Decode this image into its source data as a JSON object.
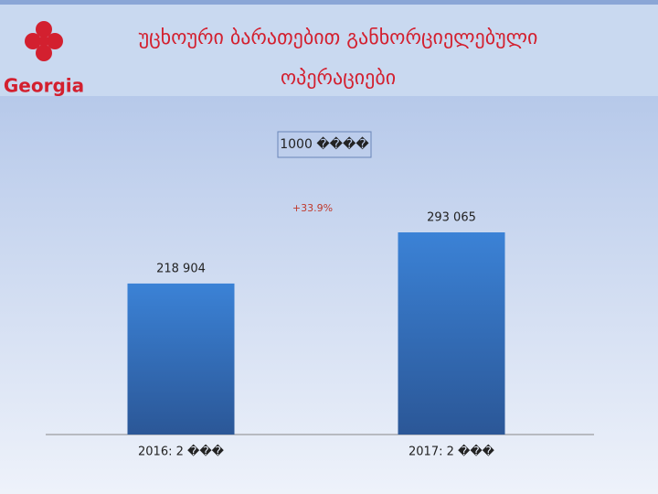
{
  "logo_text": "Georgia",
  "chart_data": {
    "type": "bar",
    "title": "უცხოური ბარათებით განხორციელებული ოპერაციები",
    "subtitle": "1000 ����",
    "annotation": "+33.9%",
    "categories": [
      "2016: 2 ���",
      "2017: 2 ���"
    ],
    "values": [
      218904,
      293065
    ],
    "value_labels": [
      "218 904",
      "293 065"
    ],
    "color": "#3577c9"
  }
}
